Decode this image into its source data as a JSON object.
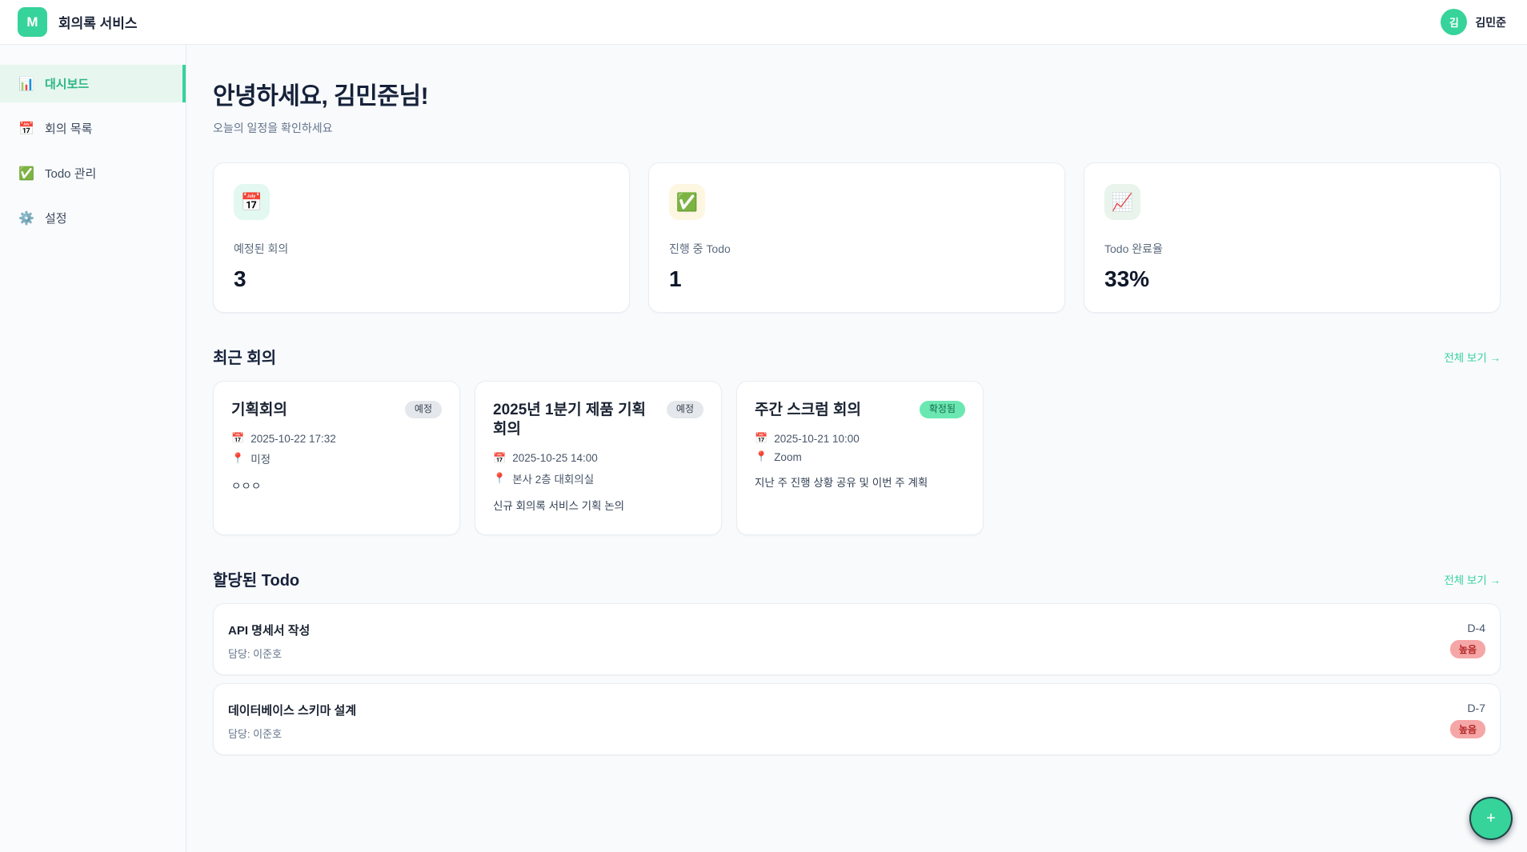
{
  "header": {
    "logo_letter": "M",
    "app_title": "회의록 서비스",
    "user": {
      "initial": "김",
      "name": "김민준"
    }
  },
  "sidebar": {
    "items": [
      {
        "icon": "📊",
        "icon_name": "bar-chart-icon",
        "label": "대시보드",
        "active": true
      },
      {
        "icon": "📅",
        "icon_name": "calendar-icon",
        "label": "회의 목록",
        "active": false
      },
      {
        "icon": "✅",
        "icon_name": "check-box-icon",
        "label": "Todo 관리",
        "active": false
      },
      {
        "icon": "⚙️",
        "icon_name": "gear-icon",
        "label": "설정",
        "active": false
      }
    ]
  },
  "greeting": {
    "title": "안녕하세요, 김민준님!",
    "subtitle": "오늘의 일정을 확인하세요"
  },
  "stats": [
    {
      "icon": "📅",
      "icon_name": "calendar-icon",
      "icon_bg": "#e2f8f0",
      "label": "예정된 회의",
      "value": "3"
    },
    {
      "icon": "✅",
      "icon_name": "check-box-icon",
      "icon_bg": "#fdf6e1",
      "label": "진행 중 Todo",
      "value": "1"
    },
    {
      "icon": "📈",
      "icon_name": "chart-increasing-icon",
      "icon_bg": "#e9f4ec",
      "label": "Todo 완료율",
      "value": "33%"
    }
  ],
  "recent_meetings": {
    "title": "최근 회의",
    "view_all": "전체 보기 →",
    "cards": [
      {
        "title": "기획회의",
        "badge": "예정",
        "badge_type": "scheduled",
        "date": "2025-10-22 17:32",
        "location": "미정",
        "description": "ㅇㅇㅇ",
        "date_icon": "📅",
        "location_icon": "📍"
      },
      {
        "title": "2025년 1분기 제품 기획 회의",
        "badge": "예정",
        "badge_type": "scheduled",
        "date": "2025-10-25 14:00",
        "location": "본사 2층 대회의실",
        "description": "신규 회의록 서비스 기획 논의",
        "date_icon": "📅",
        "location_icon": "📍"
      },
      {
        "title": "주간 스크럼 회의",
        "badge": "확정됨",
        "badge_type": "confirmed",
        "date": "2025-10-21 10:00",
        "location": "Zoom",
        "description": "지난 주 진행 상황 공유 및 이번 주 계획",
        "date_icon": "📅",
        "location_icon": "📍"
      }
    ]
  },
  "todos": {
    "title": "할당된 Todo",
    "view_all": "전체 보기 →",
    "items": [
      {
        "title": "API 명세서 작성",
        "assignee": "담당: 이준호",
        "dday": "D-4",
        "priority": "높음"
      },
      {
        "title": "데이터베이스 스키마 설계",
        "assignee": "담당: 이준호",
        "dday": "D-7",
        "priority": "높음"
      }
    ]
  },
  "fab": {
    "label": "+"
  },
  "colors": {
    "brand": "#36d39a",
    "active_item_bg": "#e7f7f0",
    "active_item_text": "#2cb584",
    "badge_scheduled_bg": "#e4e7eb",
    "badge_confirmed_bg": "#6be8b2",
    "priority_high_bg": "#f5a6a6",
    "priority_high_text": "#b32424",
    "page_bg": "#f8fafc"
  }
}
